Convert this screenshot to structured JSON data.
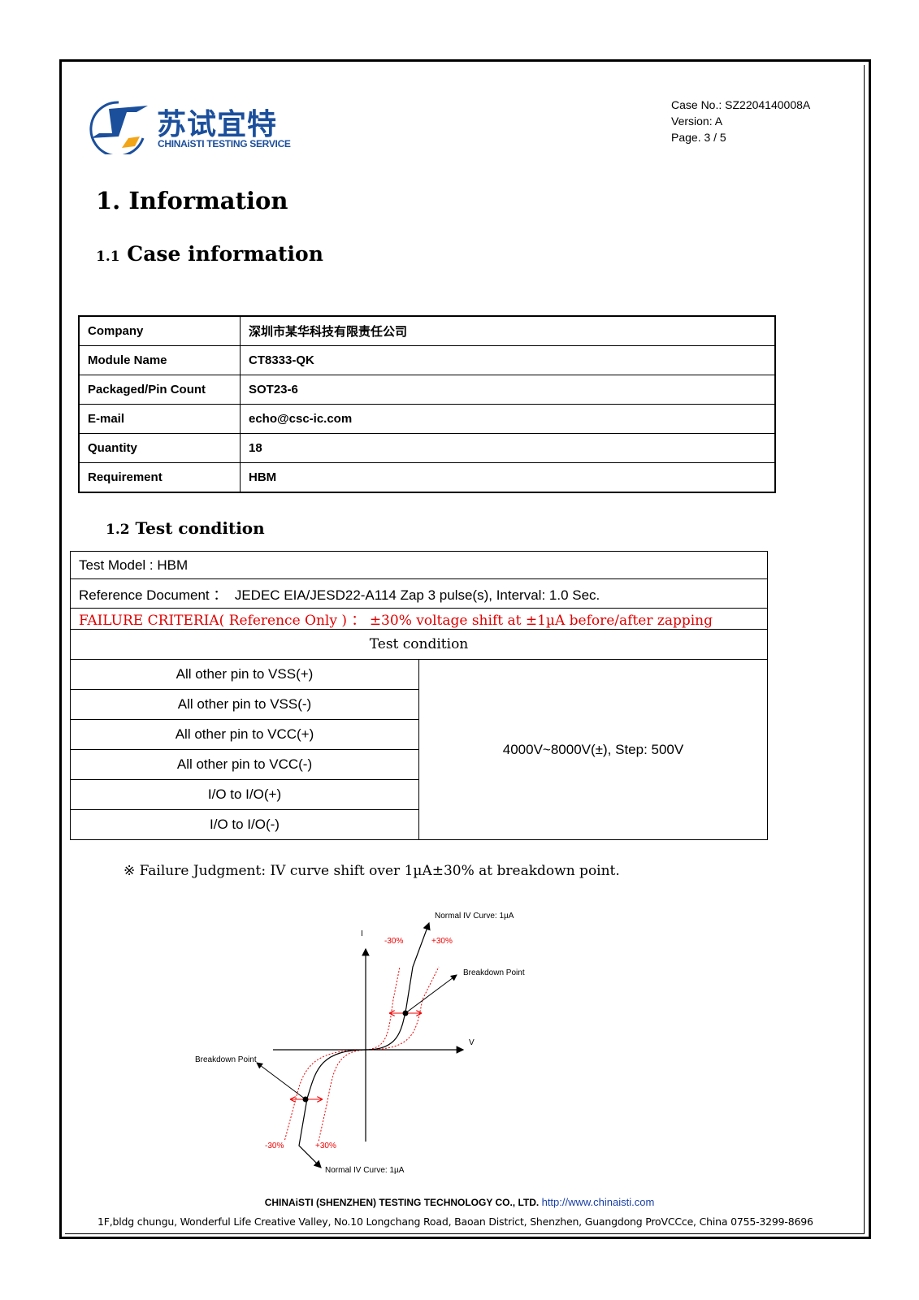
{
  "header": {
    "logo_cn": "苏试宜特",
    "logo_en": "CHINAiSTI TESTING SERVICE",
    "case_no": "Case No.: SZ2204140008A",
    "version": "Version: A",
    "page": "Page. 3 / 5"
  },
  "sections": {
    "s1": "1. Information",
    "s11_num": "1.1",
    "s11_title": "Case information",
    "s12_num": "1.2",
    "s12_title": "Test condition"
  },
  "case_info": [
    {
      "label": "Company",
      "value": "深圳市某华科技有限责任公司"
    },
    {
      "label": "Module Name",
      "value": "CT8333-QK"
    },
    {
      "label": "Packaged/Pin Count",
      "value": "SOT23-6"
    },
    {
      "label": "E-mail",
      "value": "echo@csc-ic.com"
    },
    {
      "label": "Quantity",
      "value": "18"
    },
    {
      "label": "Requirement",
      "value": "HBM"
    }
  ],
  "test_condition": {
    "model": "Test Model : HBM",
    "reference_label": "Reference Document ：",
    "reference_value": "JEDEC EIA/JESD22-A114 Zap 3 pulse(s), Interval: 1.0 Sec.",
    "failure_criteria": "FAILURE CRITERIA( Reference Only ) ： ±30% voltage shift at ±1µA before/after zapping",
    "header": "Test condition",
    "pins": [
      "All other pin to VSS(+)",
      "All other pin to VSS(-)",
      "All other pin to VCC(+)",
      "All other pin to VCC(-)",
      "I/O to I/O(+)",
      "I/O to I/O(-)"
    ],
    "voltage": "4000V~8000V(±), Step: 500V"
  },
  "note": "※  Failure Judgment: IV curve shift over 1µA±30% at breakdown point.",
  "diagram": {
    "i_axis": "I",
    "v_axis": "V",
    "minus30": "-30%",
    "plus30": "+30%",
    "normal_curve": "Normal IV Curve: 1µA",
    "breakdown": "Breakdown Point",
    "colors": {
      "curve": "#000000",
      "tolerance": "#e00000"
    }
  },
  "footer": {
    "company": "CHINAiSTI (SHENZHEN) TESTING TECHNOLOGY CO., LTD.",
    "url": "http://www.chinaisti.com",
    "address": "1F,bldg chungu, Wonderful Life Creative Valley, No.10 Longchang Road, Baoan District, Shenzhen, Guangdong ProVCCce, China    0755-3299-8696"
  }
}
